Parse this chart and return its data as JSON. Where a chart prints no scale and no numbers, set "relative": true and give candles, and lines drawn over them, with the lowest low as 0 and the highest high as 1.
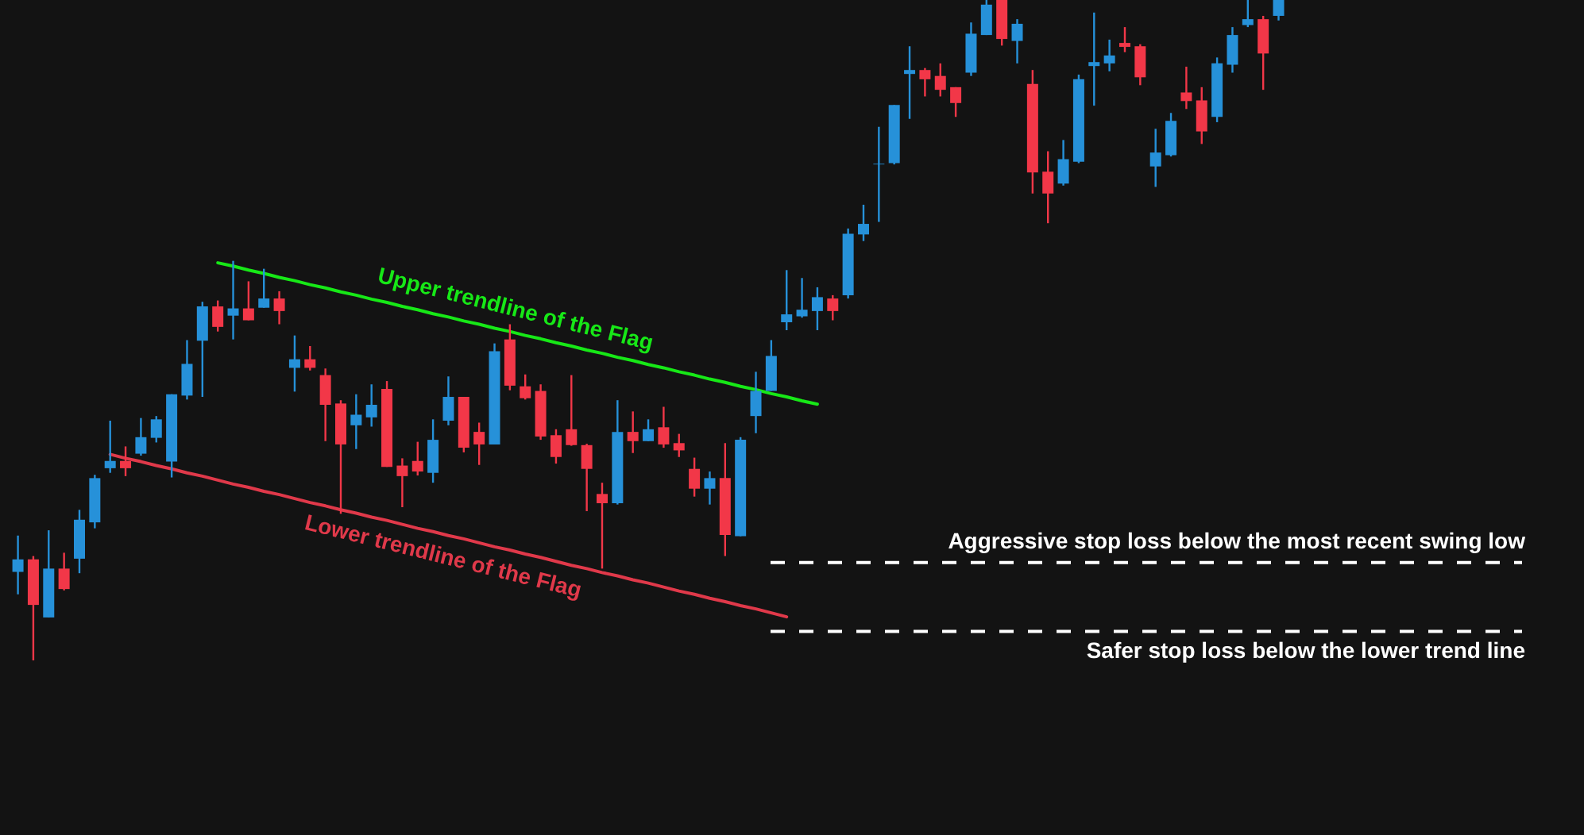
{
  "chart_data": {
    "type": "candlestick",
    "relative": true,
    "tick_labels": false,
    "categories": [
      null,
      null,
      null,
      null,
      null,
      null,
      null,
      null,
      null,
      null,
      null,
      null,
      null,
      null,
      null,
      null,
      null,
      null,
      null,
      null,
      null,
      null,
      null,
      null,
      null,
      null,
      null,
      null,
      null,
      null,
      null,
      null,
      null,
      null,
      null,
      null,
      null,
      null,
      null,
      null,
      null,
      null,
      null,
      null,
      null,
      null,
      null,
      null,
      null,
      null,
      null,
      null,
      null,
      null,
      null,
      null,
      null,
      null,
      null,
      null,
      null,
      null,
      null,
      null,
      null,
      null,
      null,
      null,
      null,
      null,
      null,
      null,
      null,
      null,
      null,
      null,
      null,
      null,
      null,
      null,
      null,
      null,
      null
    ],
    "ohlc": [
      [
        0.134,
        0.189,
        0.1,
        0.153
      ],
      [
        0.153,
        0.158,
        0.0,
        0.084
      ],
      [
        0.065,
        0.197,
        0.065,
        0.139
      ],
      [
        0.139,
        0.163,
        0.106,
        0.108
      ],
      [
        0.154,
        0.228,
        0.132,
        0.213
      ],
      [
        0.209,
        0.281,
        0.2,
        0.276
      ],
      [
        0.291,
        0.363,
        0.284,
        0.302
      ],
      [
        0.302,
        0.324,
        0.279,
        0.291
      ],
      [
        0.313,
        0.367,
        0.31,
        0.338
      ],
      [
        0.337,
        0.37,
        0.33,
        0.365
      ],
      [
        0.301,
        0.403,
        0.277,
        0.403
      ],
      [
        0.401,
        0.485,
        0.395,
        0.449
      ],
      [
        0.484,
        0.543,
        0.399,
        0.536
      ],
      [
        0.536,
        0.545,
        0.498,
        0.505
      ],
      [
        0.522,
        0.605,
        0.486,
        0.533
      ],
      [
        0.533,
        0.574,
        0.515,
        0.515
      ],
      [
        0.534,
        0.593,
        0.534,
        0.548
      ],
      [
        0.548,
        0.559,
        0.509,
        0.529
      ],
      [
        0.443,
        0.492,
        0.407,
        0.456
      ],
      [
        0.456,
        0.476,
        0.439,
        0.443
      ],
      [
        0.432,
        0.442,
        0.332,
        0.387
      ],
      [
        0.389,
        0.394,
        0.222,
        0.327
      ],
      [
        0.356,
        0.403,
        0.32,
        0.372
      ],
      [
        0.368,
        0.418,
        0.354,
        0.387
      ],
      [
        0.411,
        0.423,
        0.293,
        0.293
      ],
      [
        0.295,
        0.306,
        0.232,
        0.279
      ],
      [
        0.302,
        0.331,
        0.28,
        0.286
      ],
      [
        0.284,
        0.365,
        0.269,
        0.334
      ],
      [
        0.363,
        0.43,
        0.356,
        0.399
      ],
      [
        0.399,
        0.399,
        0.315,
        0.322
      ],
      [
        0.346,
        0.36,
        0.296,
        0.327
      ],
      [
        0.327,
        0.48,
        0.327,
        0.468
      ],
      [
        0.486,
        0.509,
        0.409,
        0.416
      ],
      [
        0.415,
        0.433,
        0.395,
        0.397
      ],
      [
        0.408,
        0.418,
        0.334,
        0.339
      ],
      [
        0.341,
        0.35,
        0.298,
        0.308
      ],
      [
        0.35,
        0.432,
        0.325,
        0.326
      ],
      [
        0.326,
        0.328,
        0.226,
        0.29
      ],
      [
        0.252,
        0.269,
        0.139,
        0.238
      ],
      [
        0.238,
        0.394,
        0.236,
        0.346
      ],
      [
        0.346,
        0.377,
        0.314,
        0.332
      ],
      [
        0.332,
        0.365,
        0.332,
        0.35
      ],
      [
        0.353,
        0.384,
        0.322,
        0.327
      ],
      [
        0.329,
        0.343,
        0.308,
        0.318
      ],
      [
        0.29,
        0.307,
        0.248,
        0.26
      ],
      [
        0.26,
        0.286,
        0.236,
        0.276
      ],
      [
        0.276,
        0.329,
        0.158,
        0.19
      ],
      [
        0.188,
        0.338,
        0.188,
        0.334
      ],
      [
        0.37,
        0.437,
        0.344,
        0.408
      ],
      [
        0.408,
        0.485,
        0.408,
        0.461
      ],
      [
        0.512,
        0.591,
        0.5,
        0.524
      ],
      [
        0.521,
        0.579,
        0.519,
        0.531
      ],
      [
        0.529,
        0.565,
        0.5,
        0.55
      ],
      [
        0.548,
        0.553,
        0.515,
        0.529
      ],
      [
        0.553,
        0.654,
        0.548,
        0.646
      ],
      [
        0.645,
        0.69,
        0.635,
        0.661
      ],
      [
        0.751,
        0.808,
        0.664,
        0.752
      ],
      [
        0.753,
        0.841,
        0.751,
        0.841
      ],
      [
        0.888,
        0.93,
        0.82,
        0.894
      ],
      [
        0.894,
        0.897,
        0.854,
        0.88
      ],
      [
        0.885,
        0.904,
        0.854,
        0.864
      ],
      [
        0.868,
        0.868,
        0.823,
        0.844
      ],
      [
        0.89,
        0.966,
        0.885,
        0.949
      ],
      [
        0.947,
        1.0,
        0.947,
        0.993
      ],
      [
        1.0,
        1.0,
        0.931,
        0.941
      ],
      [
        0.938,
        0.971,
        0.904,
        0.964
      ],
      [
        0.873,
        0.894,
        0.707,
        0.739
      ],
      [
        0.74,
        0.771,
        0.662,
        0.707
      ],
      [
        0.722,
        0.788,
        0.719,
        0.759
      ],
      [
        0.755,
        0.887,
        0.753,
        0.88
      ],
      [
        0.9,
        0.981,
        0.84,
        0.906
      ],
      [
        0.904,
        0.94,
        0.892,
        0.916
      ],
      [
        0.935,
        0.959,
        0.921,
        0.929
      ],
      [
        0.93,
        0.933,
        0.871,
        0.883
      ],
      [
        0.748,
        0.805,
        0.717,
        0.769
      ],
      [
        0.765,
        0.829,
        0.763,
        0.817
      ],
      [
        0.86,
        0.899,
        0.835,
        0.847
      ],
      [
        0.848,
        0.868,
        0.782,
        0.801
      ],
      [
        0.823,
        0.913,
        0.815,
        0.904
      ],
      [
        0.902,
        0.959,
        0.89,
        0.947
      ],
      [
        0.962,
        1.0,
        0.959,
        0.971
      ],
      [
        0.971,
        0.976,
        0.864,
        0.919
      ],
      [
        0.976,
        1.0,
        0.969,
        1.0
      ]
    ],
    "colors": [
      "#2691d9",
      "#f23748",
      "#2691d9",
      "#f23748",
      "#2691d9",
      "#2691d9",
      "#2691d9",
      "#f23748",
      "#2691d9",
      "#2691d9",
      "#2691d9",
      "#2691d9",
      "#2691d9",
      "#f23748",
      "#2691d9",
      "#f23748",
      "#2691d9",
      "#f23748",
      "#2691d9",
      "#f23748",
      "#f23748",
      "#f23748",
      "#2691d9",
      "#2691d9",
      "#f23748",
      "#f23748",
      "#f23748",
      "#2691d9",
      "#2691d9",
      "#f23748",
      "#f23748",
      "#2691d9",
      "#f23748",
      "#f23748",
      "#f23748",
      "#f23748",
      "#f23748",
      "#f23748",
      "#f23748",
      "#2691d9",
      "#f23748",
      "#2691d9",
      "#f23748",
      "#f23748",
      "#f23748",
      "#2691d9",
      "#f23748",
      "#2691d9",
      "#2691d9",
      "#2691d9",
      "#2691d9",
      "#2691d9",
      "#2691d9",
      "#f23748",
      "#2691d9",
      "#2691d9",
      "#2691d9",
      "#2691d9",
      "#2691d9",
      "#f23748",
      "#f23748",
      "#f23748",
      "#2691d9",
      "#2691d9",
      "#f23748",
      "#2691d9",
      "#f23748",
      "#f23748",
      "#2691d9",
      "#2691d9",
      "#2691d9",
      "#2691d9",
      "#f23748",
      "#f23748",
      "#2691d9",
      "#2691d9",
      "#f23748",
      "#f23748",
      "#2691d9",
      "#2691d9",
      "#2691d9",
      "#f23748",
      "#2691d9"
    ],
    "series": [
      {
        "name": "Upper trendline of the Flag",
        "type": "line",
        "color": "#17e817",
        "values": [
          null,
          null,
          null,
          null,
          null,
          null,
          null,
          null,
          null,
          null,
          null,
          null,
          null,
          0.602,
          0.597,
          0.591,
          0.586,
          0.58,
          0.575,
          0.569,
          0.564,
          0.558,
          0.553,
          0.547,
          0.542,
          0.536,
          0.531,
          0.525,
          0.52,
          0.514,
          0.509,
          0.503,
          0.498,
          0.492,
          0.487,
          0.481,
          0.476,
          0.47,
          0.465,
          0.459,
          0.454,
          0.448,
          0.443,
          0.437,
          0.432,
          0.426,
          0.421,
          0.415,
          0.41,
          0.404,
          0.399,
          0.393,
          0.388,
          null,
          null,
          null,
          null,
          null,
          null,
          null,
          null,
          null,
          null,
          null,
          null,
          null,
          null,
          null,
          null,
          null,
          null,
          null,
          null,
          null,
          null,
          null,
          null,
          null,
          null,
          null,
          null,
          null,
          null
        ]
      },
      {
        "name": "Lower trendline of the Flag",
        "type": "line",
        "color": "#e0394a",
        "values": [
          null,
          null,
          null,
          null,
          null,
          null,
          0.312,
          0.306,
          0.301,
          0.295,
          0.29,
          0.284,
          0.279,
          0.273,
          0.267,
          0.262,
          0.256,
          0.251,
          0.245,
          0.239,
          0.234,
          0.228,
          0.223,
          0.217,
          0.212,
          0.206,
          0.2,
          0.195,
          0.189,
          0.184,
          0.178,
          0.172,
          0.167,
          0.161,
          0.156,
          0.15,
          0.144,
          0.139,
          0.133,
          0.128,
          0.122,
          0.117,
          0.111,
          0.105,
          0.1,
          0.094,
          0.089,
          0.083,
          0.078,
          0.072,
          0.066,
          null,
          null,
          null,
          null,
          null,
          null,
          null,
          null,
          null,
          null,
          null,
          null,
          null,
          null,
          null,
          null,
          null,
          null,
          null,
          null,
          null,
          null,
          null,
          null,
          null,
          null,
          null,
          null,
          null,
          null,
          null,
          null
        ]
      }
    ],
    "ref_lines": [
      {
        "axis": "y",
        "value": 0.148,
        "label": "Aggressive stop loss below the most recent swing low",
        "color": "#ffffff",
        "line_style": "dashed"
      },
      {
        "axis": "y",
        "value": 0.044,
        "label": "Safer stop loss below the lower trend line",
        "color": "#ffffff",
        "line_style": "dashed"
      }
    ]
  }
}
